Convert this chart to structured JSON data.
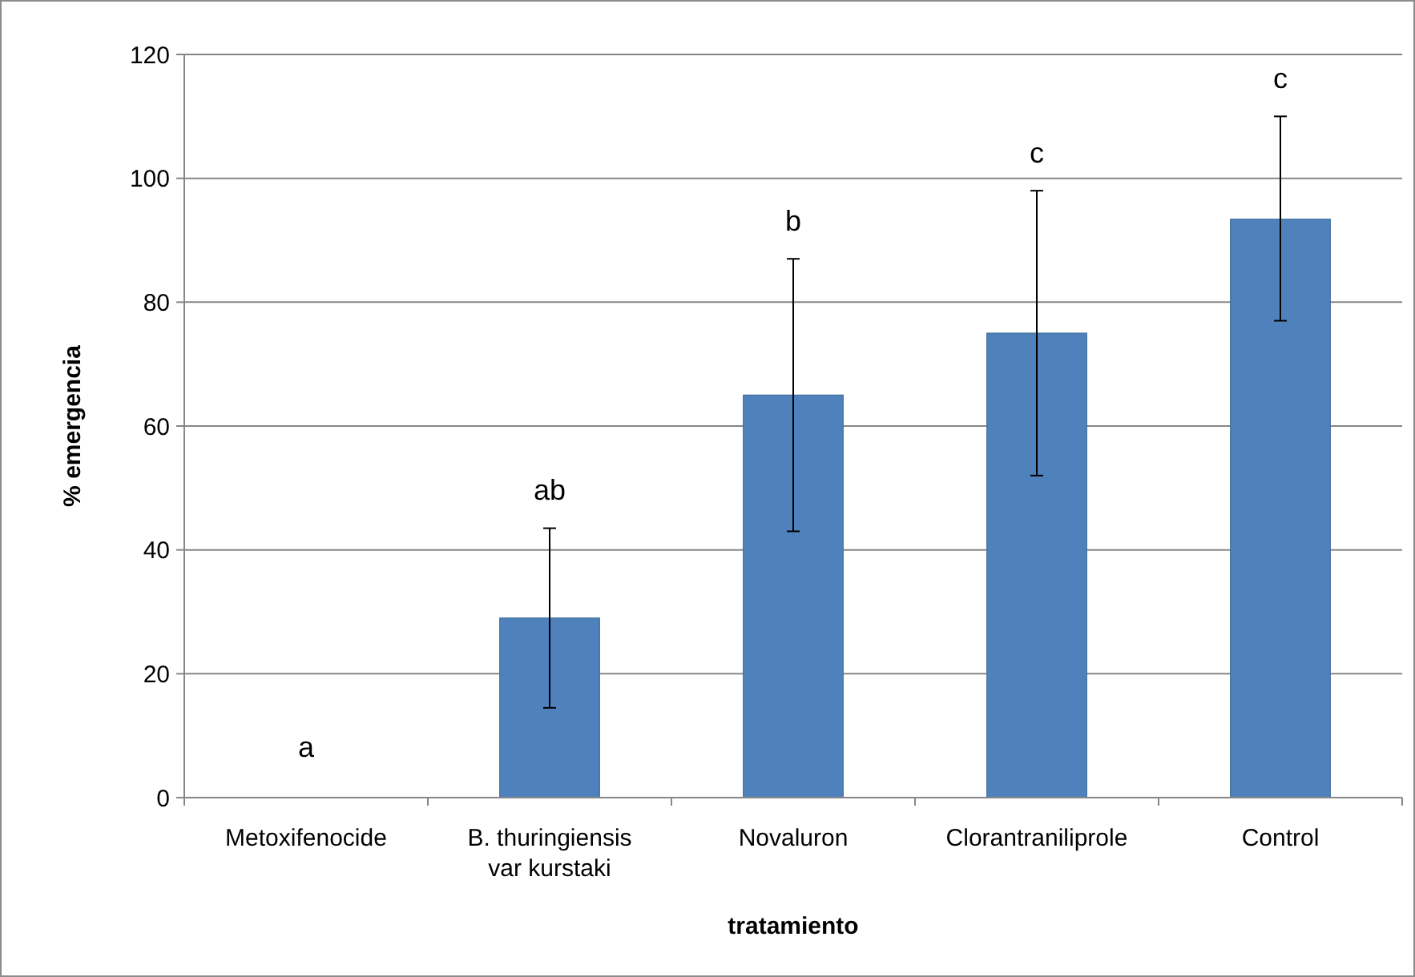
{
  "chart_data": {
    "type": "bar",
    "xlabel": "tratamiento",
    "ylabel": "% emergencia",
    "categories": [
      "Metoxifenocide",
      "B. thuringiensis var kurstaki",
      "Novaluron",
      "Clorantraniliprole",
      "Control"
    ],
    "values": [
      0,
      29,
      65,
      75,
      93.4
    ],
    "errors": [
      null,
      [
        14.5,
        43.5
      ],
      [
        43,
        87
      ],
      [
        52,
        98
      ],
      [
        77,
        110
      ]
    ],
    "color": "#4f81bd",
    "ylim": [
      0,
      120
    ],
    "yticks": [
      0,
      20,
      40,
      60,
      80,
      100,
      120
    ],
    "grid": "y",
    "annotations": [
      "a",
      "ab",
      "b",
      "c",
      "c"
    ]
  }
}
